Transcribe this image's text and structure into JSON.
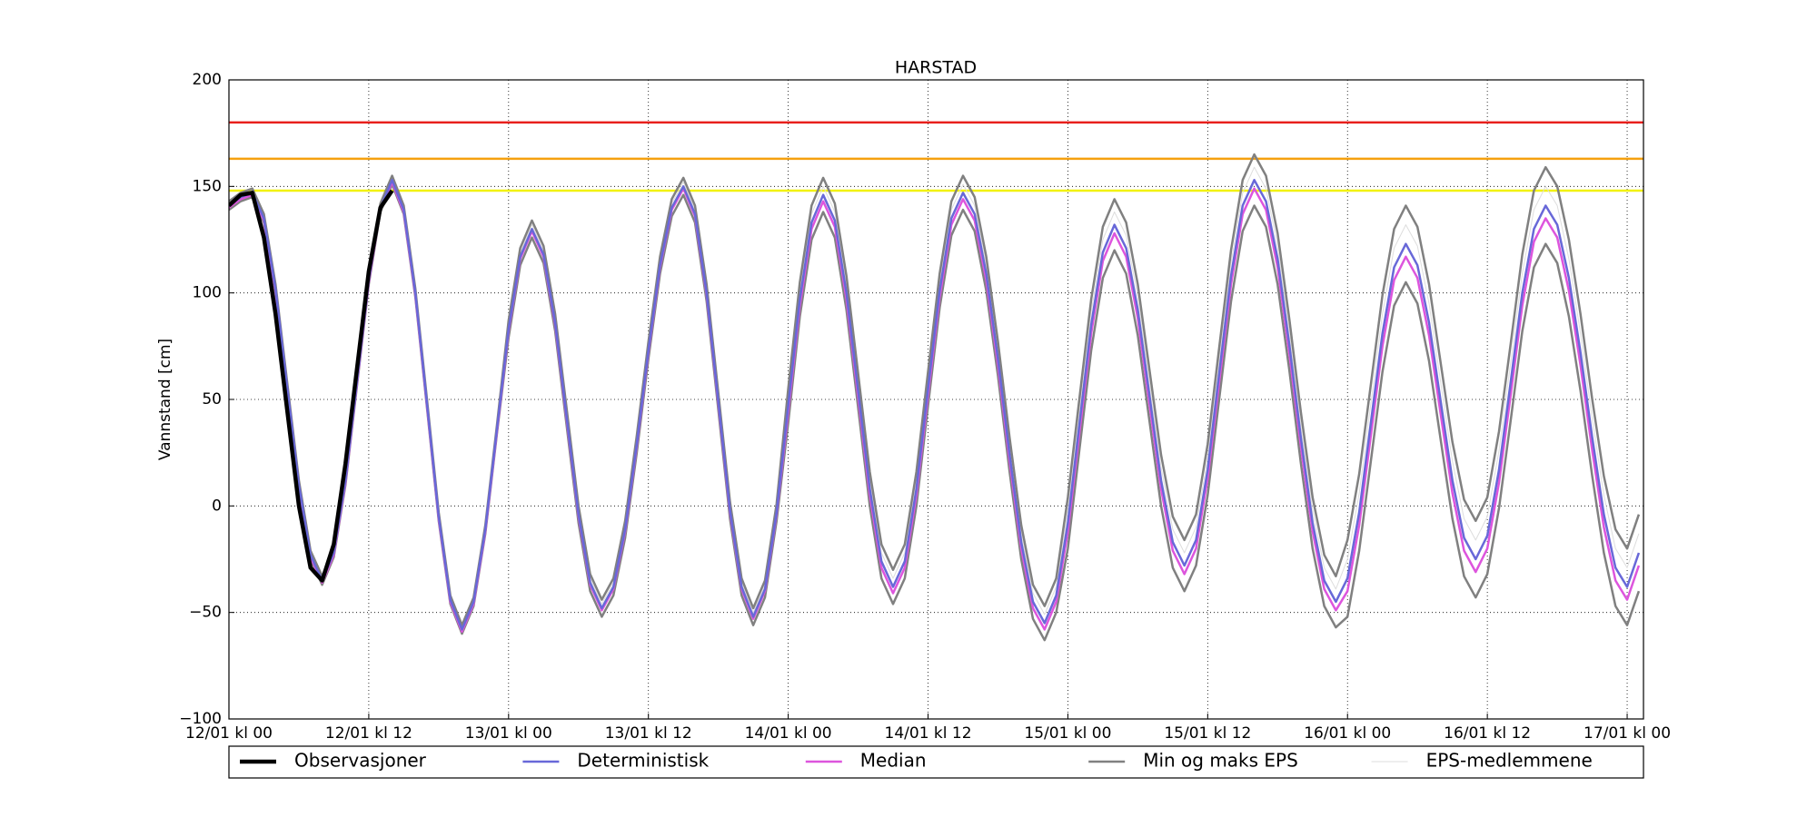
{
  "chart_data": {
    "type": "line",
    "title": "HARSTAD",
    "ylabel": "Vannstand [cm]",
    "x": [
      0,
      1,
      2,
      3,
      4,
      5,
      6,
      7,
      8,
      9,
      10,
      11,
      12,
      13,
      14,
      15,
      16,
      17,
      18,
      19,
      20,
      21,
      22,
      23,
      24,
      25,
      26,
      27,
      28,
      29,
      30,
      31,
      32,
      33,
      34,
      35,
      36,
      37,
      38,
      39,
      40,
      41,
      42,
      43,
      44,
      45,
      46,
      47,
      48,
      49,
      50,
      51,
      52,
      53,
      54,
      55,
      56,
      57,
      58,
      59,
      60,
      61,
      62,
      63,
      64,
      65,
      66,
      67,
      68,
      69,
      70,
      71,
      72,
      73,
      74,
      75,
      76,
      77,
      78,
      79,
      80,
      81,
      82,
      83,
      84,
      85,
      86,
      87,
      88,
      89,
      90,
      91,
      92,
      93,
      94,
      95,
      96,
      97,
      98,
      99,
      100,
      101,
      102,
      103,
      104,
      105,
      106,
      107,
      108,
      109,
      110,
      111,
      112,
      113,
      114,
      115,
      116,
      117,
      118,
      119,
      120,
      121
    ],
    "xlim": [
      0,
      121.4
    ],
    "ylim": [
      -100,
      200
    ],
    "xticks": [
      {
        "value": 0,
        "label": "12/01 kl 00"
      },
      {
        "value": 12,
        "label": "12/01 kl 12"
      },
      {
        "value": 24,
        "label": "13/01 kl 00"
      },
      {
        "value": 36,
        "label": "13/01 kl 12"
      },
      {
        "value": 48,
        "label": "14/01 kl 00"
      },
      {
        "value": 60,
        "label": "14/01 kl 12"
      },
      {
        "value": 72,
        "label": "15/01 kl 00"
      },
      {
        "value": 84,
        "label": "15/01 kl 12"
      },
      {
        "value": 96,
        "label": "16/01 kl 00"
      },
      {
        "value": 108,
        "label": "16/01 kl 12"
      },
      {
        "value": 120,
        "label": "17/01 kl 00"
      }
    ],
    "yticks": [
      {
        "value": -100,
        "label": "−100"
      },
      {
        "value": -50,
        "label": "−50"
      },
      0,
      50,
      100,
      150,
      200
    ],
    "grid": true,
    "hlines": [
      {
        "value": 180,
        "color": "#e8201c"
      },
      {
        "value": 163,
        "color": "#f5a00f"
      },
      {
        "value": 148,
        "color": "#f2f20a"
      }
    ],
    "series": [
      {
        "name": "Observasjoner",
        "color": "#000000",
        "x": [
          0,
          1,
          2,
          3,
          4,
          5,
          6,
          7,
          8,
          9,
          10,
          11,
          12,
          13,
          14
        ],
        "values": [
          141,
          146,
          147,
          126,
          90,
          45,
          0,
          -29,
          -35,
          -18,
          20,
          65,
          110,
          140,
          148
        ]
      },
      {
        "name": "Deterministisk",
        "color": "#6868d8",
        "values": [
          141,
          145,
          147,
          135,
          102,
          56,
          10,
          -23,
          -35,
          -22,
          12,
          59,
          106,
          140,
          153,
          139,
          100,
          48,
          -5,
          -44,
          -58,
          -45,
          -11,
          36,
          83,
          117,
          130,
          118,
          86,
          41,
          -4,
          -36,
          -48,
          -38,
          -11,
          29,
          73,
          113,
          140,
          150,
          137,
          100,
          49,
          -2,
          -38,
          -52,
          -39,
          -3,
          47,
          97,
          133,
          146,
          134,
          100,
          54,
          8,
          -26,
          -38,
          -26,
          8,
          55,
          101,
          135,
          147,
          137,
          109,
          69,
          24,
          -17,
          -45,
          -55,
          -42,
          -8,
          39,
          85,
          119,
          132,
          121,
          92,
          52,
          12,
          -17,
          -28,
          -16,
          17,
          63,
          108,
          141,
          153,
          143,
          116,
          76,
          32,
          -8,
          -35,
          -45,
          -34,
          -3,
          39,
          81,
          112,
          123,
          113,
          86,
          49,
          12,
          -15,
          -25,
          -14,
          17,
          58,
          100,
          130,
          141,
          132,
          107,
          72,
          32,
          -4,
          -29,
          -38,
          -22
        ]
      },
      {
        "name": "Median",
        "color": "#dd55dd",
        "values": [
          140,
          144,
          146,
          134,
          101,
          55,
          9,
          -24,
          -36,
          -23,
          11,
          58,
          105,
          139,
          152,
          138,
          99,
          47,
          -6,
          -45,
          -59,
          -46,
          -12,
          35,
          82,
          116,
          129,
          117,
          85,
          40,
          -5,
          -37,
          -49,
          -39,
          -12,
          28,
          72,
          112,
          139,
          149,
          136,
          99,
          48,
          -3,
          -39,
          -53,
          -40,
          -4,
          44,
          94,
          130,
          143,
          131,
          97,
          51,
          5,
          -29,
          -41,
          -29,
          5,
          52,
          98,
          132,
          144,
          134,
          106,
          66,
          21,
          -20,
          -48,
          -58,
          -45,
          -12,
          35,
          81,
          115,
          128,
          117,
          88,
          48,
          8,
          -21,
          -32,
          -20,
          13,
          59,
          104,
          137,
          149,
          139,
          112,
          72,
          28,
          -12,
          -39,
          -49,
          -40,
          -9,
          33,
          75,
          106,
          117,
          107,
          80,
          43,
          6,
          -21,
          -31,
          -20,
          11,
          52,
          94,
          124,
          135,
          126,
          101,
          66,
          26,
          -10,
          -35,
          -44,
          -28
        ]
      },
      {
        "name": "Min og maks EPS",
        "color": "#808080",
        "lower": [
          139,
          143,
          145,
          133,
          100,
          54,
          8,
          -25,
          -37,
          -24,
          10,
          57,
          104,
          138,
          151,
          137,
          98,
          46,
          -7,
          -46,
          -60,
          -47,
          -13,
          34,
          79,
          113,
          126,
          114,
          82,
          37,
          -8,
          -40,
          -52,
          -42,
          -15,
          25,
          69,
          109,
          136,
          146,
          133,
          96,
          45,
          -6,
          -42,
          -56,
          -43,
          -7,
          39,
          89,
          125,
          138,
          126,
          92,
          46,
          0,
          -34,
          -46,
          -34,
          0,
          47,
          93,
          127,
          139,
          129,
          101,
          61,
          16,
          -25,
          -53,
          -63,
          -50,
          -20,
          27,
          73,
          107,
          120,
          109,
          80,
          40,
          0,
          -29,
          -40,
          -28,
          5,
          51,
          96,
          129,
          141,
          131,
          104,
          64,
          20,
          -20,
          -47,
          -57,
          -52,
          -21,
          21,
          63,
          94,
          105,
          95,
          68,
          31,
          -6,
          -33,
          -43,
          -32,
          -1,
          40,
          82,
          112,
          123,
          114,
          89,
          54,
          14,
          -22,
          -47,
          -56,
          -40
        ],
        "upper": [
          143,
          147,
          149,
          137,
          104,
          58,
          12,
          -21,
          -33,
          -20,
          14,
          61,
          108,
          142,
          155,
          141,
          102,
          50,
          -3,
          -42,
          -56,
          -43,
          -9,
          38,
          87,
          121,
          134,
          122,
          90,
          45,
          0,
          -32,
          -44,
          -34,
          -7,
          33,
          77,
          117,
          144,
          154,
          141,
          104,
          53,
          2,
          -34,
          -48,
          -35,
          1,
          55,
          105,
          141,
          154,
          142,
          108,
          62,
          16,
          -18,
          -30,
          -18,
          16,
          63,
          109,
          143,
          155,
          145,
          117,
          77,
          32,
          -9,
          -37,
          -47,
          -34,
          4,
          51,
          97,
          131,
          144,
          133,
          104,
          64,
          24,
          -5,
          -16,
          -4,
          29,
          75,
          120,
          153,
          165,
          155,
          128,
          88,
          44,
          4,
          -23,
          -33,
          -16,
          15,
          57,
          99,
          130,
          141,
          131,
          104,
          67,
          30,
          3,
          -7,
          4,
          35,
          76,
          118,
          148,
          159,
          150,
          125,
          90,
          50,
          14,
          -11,
          -20,
          -4
        ]
      },
      {
        "name": "EPS-medlemmene",
        "color": "#dddddd",
        "values": [
          142,
          146,
          148,
          136,
          103,
          57,
          11,
          -22,
          -34,
          -21,
          13,
          60,
          107,
          141,
          154,
          140,
          101,
          49,
          -4,
          -43,
          -57,
          -44,
          -10,
          37,
          85,
          119,
          132,
          120,
          88,
          43,
          -2,
          -34,
          -46,
          -36,
          -9,
          31,
          75,
          115,
          142,
          152,
          139,
          102,
          51,
          0,
          -36,
          -50,
          -37,
          -1,
          51,
          101,
          137,
          150,
          138,
          104,
          58,
          12,
          -22,
          -34,
          -22,
          12,
          59,
          105,
          139,
          151,
          141,
          113,
          73,
          28,
          -13,
          -41,
          -51,
          -38,
          -2,
          45,
          91,
          125,
          138,
          127,
          98,
          58,
          18,
          -11,
          -22,
          -10,
          23,
          69,
          114,
          147,
          159,
          149,
          122,
          82,
          38,
          -2,
          -29,
          -39,
          -25,
          6,
          48,
          90,
          121,
          132,
          122,
          95,
          58,
          21,
          -6,
          -16,
          -5,
          26,
          67,
          109,
          139,
          150,
          141,
          116,
          81,
          41,
          5,
          -20,
          -29,
          -13
        ]
      }
    ]
  }
}
